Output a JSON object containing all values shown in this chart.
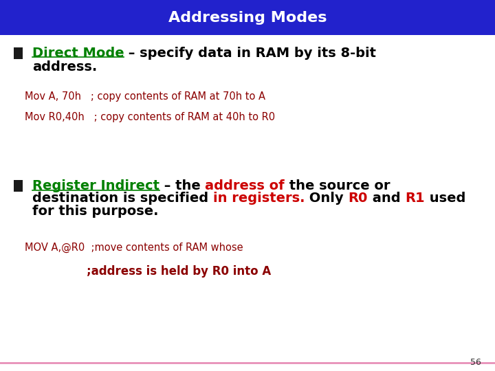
{
  "title": "Addressing Modes",
  "title_bg": "#2222cc",
  "title_color": "#ffffff",
  "title_fontsize": 16,
  "bg_color": "#ffffff",
  "green_color": "#008000",
  "black_color": "#000000",
  "red_color": "#cc0000",
  "dark_red_code": "#8b0000",
  "bullet1_label": "Direct Mode",
  "code1_line1": "Mov A, 70h   ; copy contents of RAM at 70h to A",
  "code1_line2": "Mov R0,40h   ; copy contents of RAM at 40h to R0",
  "bullet2_label": "Register Indirect",
  "code2_line1": "MOV A,@R0  ;move contents of RAM whose",
  "code2_line2": ";address is held by R0 into A",
  "page_number": "56",
  "bottom_line_color": "#e890b8",
  "main_fontsize": 14,
  "code_fontsize": 10.5
}
